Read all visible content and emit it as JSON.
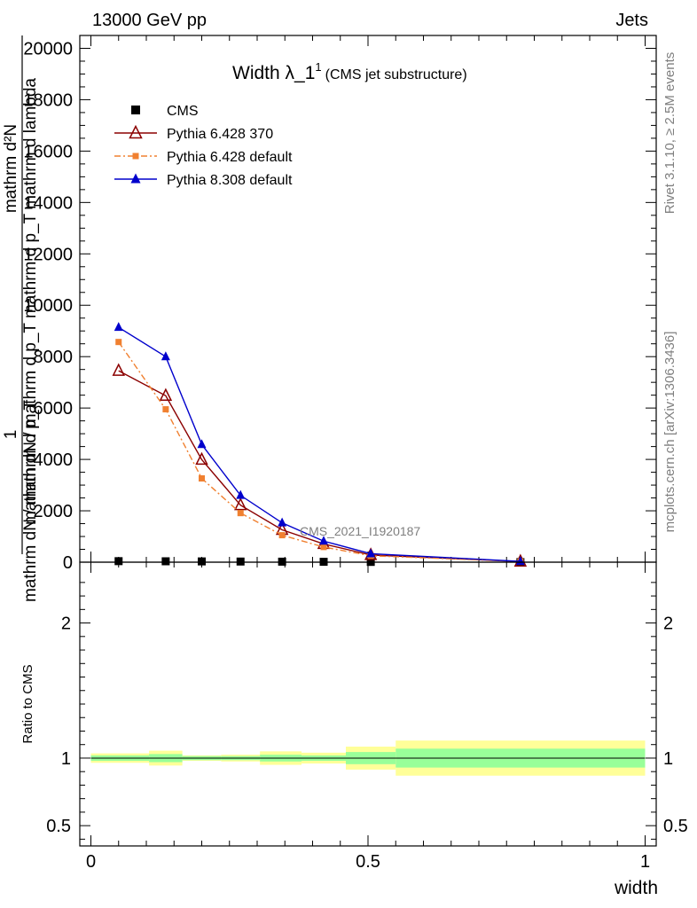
{
  "header": {
    "left": "13000 GeV pp",
    "right": "Jets"
  },
  "side": {
    "rivet": "Rivet 3.1.10, ≥ 2.5M events",
    "mcplots": "mcplots.cern.ch [arXiv:1306.3436]"
  },
  "watermark": "CMS_2021_I1920187",
  "chart_data": [
    {
      "type": "line",
      "title": "Width λ_1",
      "title_sup": "1",
      "subtitle": "(CMS jet substructure)",
      "ylabel": "1 / mathrm dN / mathrm d p_T  mathrm d^2N / mathrm d p_T mathrm d lambda",
      "ylabel_parts": {
        "numerator_top": "mathrm d²N",
        "denominator_top": "1",
        "fraction_denominator": "mathrm dN / mathrm d p_T mathrm d p_T mathrm d lambda",
        "outer_numerator": "1",
        "outer_denominator": "mathrm dN / mathrm d p_T"
      },
      "xlim": [
        -0.02,
        1.02
      ],
      "ylim": [
        0,
        20500
      ],
      "yticks": [
        0,
        2000,
        4000,
        6000,
        8000,
        10000,
        12000,
        14000,
        16000,
        18000,
        20000
      ],
      "ytick_labels": [
        "0",
        "2000",
        "4000",
        "6000",
        "8000",
        "10000",
        "12000",
        "14000",
        "16000",
        "18000",
        "20000"
      ],
      "legend_position": "top-left",
      "series": [
        {
          "name": "CMS",
          "marker": "square",
          "color": "#000000",
          "x": [
            0.05,
            0.135,
            0.2,
            0.27,
            0.345,
            0.42,
            0.505,
            0.775
          ],
          "y": [
            40,
            35,
            30,
            25,
            20,
            15,
            10,
            5
          ]
        },
        {
          "name": "Pythia 6.428 370",
          "marker": "open-triangle",
          "color": "#8b0000",
          "line": "solid",
          "x": [
            0.05,
            0.135,
            0.2,
            0.27,
            0.345,
            0.42,
            0.505,
            0.775
          ],
          "y": [
            7450,
            6480,
            3990,
            2220,
            1260,
            710,
            280,
            28
          ]
        },
        {
          "name": "Pythia 6.428 default",
          "marker": "square",
          "color": "#f08030",
          "line": "dash-dot",
          "x": [
            0.05,
            0.135,
            0.2,
            0.27,
            0.345,
            0.42,
            0.505,
            0.775
          ],
          "y": [
            8570,
            5950,
            3260,
            1910,
            1050,
            590,
            250,
            25
          ]
        },
        {
          "name": "Pythia 8.308 default",
          "marker": "triangle",
          "color": "#0000cc",
          "line": "solid",
          "x": [
            0.05,
            0.135,
            0.2,
            0.27,
            0.345,
            0.42,
            0.505,
            0.775
          ],
          "y": [
            9140,
            8000,
            4580,
            2600,
            1530,
            820,
            330,
            30
          ]
        }
      ]
    },
    {
      "type": "area",
      "ylabel": "Ratio to CMS",
      "xlabel": "width",
      "xlim": [
        -0.02,
        1.02
      ],
      "ylim": [
        0.35,
        2.45
      ],
      "xticks": [
        0,
        0.5,
        1
      ],
      "xtick_labels": [
        "0",
        "0.5",
        "1"
      ],
      "yticks": [
        0.5,
        1,
        2
      ],
      "ytick_labels": [
        "0.5",
        "1",
        "2"
      ],
      "reference_line": 1,
      "bands": {
        "colors": {
          "outer": "#ffff99",
          "inner": "#99ff99"
        },
        "bins": [
          {
            "x0": 0.0,
            "x1": 0.105,
            "outer": [
              0.965,
              1.035
            ],
            "inner": [
              0.98,
              1.02
            ]
          },
          {
            "x0": 0.105,
            "x1": 0.165,
            "outer": [
              0.945,
              1.055
            ],
            "inner": [
              0.97,
              1.03
            ]
          },
          {
            "x0": 0.165,
            "x1": 0.235,
            "outer": [
              0.98,
              1.02
            ],
            "inner": [
              0.985,
              1.015
            ]
          },
          {
            "x0": 0.235,
            "x1": 0.305,
            "outer": [
              0.975,
              1.025
            ],
            "inner": [
              0.985,
              1.015
            ]
          },
          {
            "x0": 0.305,
            "x1": 0.38,
            "outer": [
              0.95,
              1.05
            ],
            "inner": [
              0.975,
              1.025
            ]
          },
          {
            "x0": 0.38,
            "x1": 0.46,
            "outer": [
              0.96,
              1.04
            ],
            "inner": [
              0.98,
              1.02
            ]
          },
          {
            "x0": 0.46,
            "x1": 0.55,
            "outer": [
              0.915,
              1.085
            ],
            "inner": [
              0.955,
              1.045
            ]
          },
          {
            "x0": 0.55,
            "x1": 1.0,
            "outer": [
              0.87,
              1.13
            ],
            "inner": [
              0.93,
              1.07
            ]
          }
        ]
      }
    }
  ]
}
